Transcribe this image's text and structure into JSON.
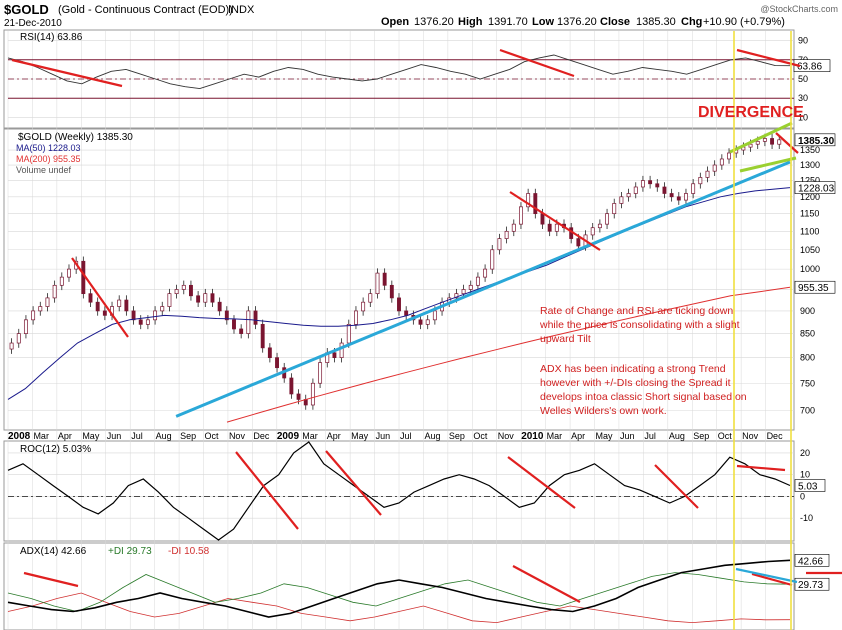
{
  "header": {
    "symbol": "$GOLD",
    "name": "(Gold - Continuous Contract (EOD))",
    "exchange": "INDX",
    "date": "21-Dec-2010",
    "watermark": "@StockCharts.com",
    "open_label": "Open",
    "open": "1376.20",
    "high_label": "High",
    "high": "1391.70",
    "low_label": "Low",
    "low": "1376.20",
    "close_label": "Close",
    "close": "1385.30",
    "chg_label": "Chg",
    "chg": "+10.90 (+0.79%)"
  },
  "colors": {
    "candle": "#7a1530",
    "grid": "#d8d8d8",
    "ma50": "#1a1a8c",
    "ma200": "#e03030",
    "trendline": "#2aa8d8",
    "annotation": "#e02020",
    "channel": "#9ad030",
    "marker": "#f0e040",
    "plusdi": "#2a7a2a",
    "minusdi": "#d03030",
    "price_label_bg": "#ffffff"
  },
  "annotations": {
    "divergence": "DIVERGENCE",
    "note1": [
      "Rate of Change and RSI are ticking down",
      "while the price is consolidating with a slight",
      "upward Tilt"
    ],
    "note2": [
      "ADX has been indicating a strong Trend",
      "however with +/-DIs closing the Spread it",
      "develops intoa classic Short signal based on",
      "Welles Wilders's own work."
    ]
  },
  "chart_data": [
    {
      "type": "line",
      "title": "RSI(14) 63.86",
      "series": [
        {
          "name": "RSI(14)",
          "values": [
            72,
            68,
            62,
            55,
            48,
            45,
            52,
            58,
            60,
            55,
            50,
            45,
            42,
            40,
            45,
            50,
            55,
            52,
            58,
            62,
            60,
            55,
            52,
            50,
            48,
            50,
            55,
            60,
            65,
            62,
            58,
            55,
            50,
            55,
            60,
            68,
            72,
            75,
            70,
            65,
            60,
            55,
            58,
            62,
            60,
            58,
            55,
            60,
            65,
            70,
            72,
            68,
            64,
            63.86
          ]
        }
      ],
      "ylim": [
        0,
        100
      ],
      "ticks": [
        "90",
        "70",
        "50",
        "30",
        "10"
      ],
      "last_label": "63.86"
    },
    {
      "type": "line",
      "title": "$GOLD (Weekly) 1385.30",
      "legend": [
        {
          "name": "MA(50) 1228.03",
          "color": "#1a1a8c"
        },
        {
          "name": "MA(200) 955.35",
          "color": "#e03030"
        },
        {
          "name": "Volume undef",
          "color": "#888888"
        }
      ],
      "x_labels": [
        "2008",
        "Mar",
        "Apr",
        "May",
        "Jun",
        "Jul",
        "Aug",
        "Sep",
        "Oct",
        "Nov",
        "Dec",
        "2009",
        "Mar",
        "Apr",
        "May",
        "Jun",
        "Jul",
        "Aug",
        "Sep",
        "Oct",
        "Nov",
        "2010",
        "Mar",
        "Apr",
        "May",
        "Jun",
        "Jul",
        "Aug",
        "Sep",
        "Oct",
        "Nov",
        "Dec"
      ],
      "y_ticks": [
        700,
        750,
        800,
        850,
        900,
        950,
        1000,
        1050,
        1100,
        1150,
        1200,
        1250,
        1300,
        1350
      ],
      "ylog": true,
      "ylim": [
        670,
        1420
      ],
      "close_series": [
        830,
        850,
        880,
        900,
        910,
        930,
        960,
        980,
        1000,
        1020,
        940,
        920,
        900,
        890,
        910,
        925,
        900,
        880,
        870,
        880,
        900,
        910,
        940,
        950,
        960,
        935,
        920,
        940,
        920,
        900,
        880,
        860,
        850,
        900,
        870,
        820,
        800,
        780,
        760,
        730,
        720,
        710,
        750,
        790,
        810,
        800,
        830,
        870,
        900,
        920,
        940,
        990,
        960,
        930,
        900,
        890,
        880,
        870,
        880,
        900,
        920,
        930,
        940,
        950,
        960,
        980,
        1000,
        1050,
        1080,
        1100,
        1120,
        1170,
        1210,
        1150,
        1120,
        1100,
        1120,
        1110,
        1080,
        1060,
        1090,
        1110,
        1120,
        1150,
        1180,
        1200,
        1210,
        1230,
        1250,
        1240,
        1230,
        1210,
        1200,
        1190,
        1210,
        1240,
        1260,
        1280,
        1300,
        1320,
        1340,
        1350,
        1360,
        1370,
        1380,
        1390,
        1370,
        1385.3
      ],
      "ma50": [
        720,
        740,
        770,
        800,
        830,
        850,
        870,
        880,
        885,
        890,
        888,
        885,
        883,
        882,
        880,
        876,
        872,
        868,
        866,
        866,
        868,
        872,
        880,
        890,
        905,
        920,
        935,
        950,
        965,
        980,
        995,
        1010,
        1030,
        1050,
        1070,
        1090,
        1110,
        1130,
        1150,
        1170,
        1185,
        1200,
        1210,
        1218,
        1223,
        1228.03
      ],
      "ma200": [
        680,
        695,
        710,
        725,
        740,
        755,
        770,
        785,
        800,
        815,
        830,
        845,
        860,
        875,
        890,
        905,
        920,
        935,
        945,
        955.35
      ],
      "trendline": [
        {
          "x": 0.215,
          "y": 690
        },
        {
          "x": 1.0,
          "y": 1310
        }
      ],
      "price_labels": [
        "1385.30",
        "1228.03",
        "955.35"
      ]
    },
    {
      "type": "line",
      "title": "ROC(12) 5.03%",
      "series": [
        {
          "name": "ROC(12)",
          "values": [
            12,
            15,
            10,
            5,
            0,
            -5,
            -8,
            -3,
            5,
            8,
            2,
            -5,
            -10,
            -15,
            -20,
            -15,
            -5,
            5,
            10,
            20,
            25,
            15,
            10,
            5,
            0,
            -5,
            -3,
            2,
            5,
            8,
            10,
            8,
            5,
            0,
            -5,
            -3,
            5,
            10,
            12,
            15,
            10,
            5,
            3,
            0,
            -3,
            0,
            5,
            10,
            18,
            15,
            10,
            8,
            5.03
          ]
        }
      ],
      "ylim": [
        -20,
        25
      ],
      "ticks": [
        "20",
        "10",
        "0",
        "-10"
      ],
      "last_label": "5.03"
    },
    {
      "type": "line",
      "title": "ADX(14) 42.66",
      "legend": [
        {
          "name": "+DI 29.73",
          "color": "#2a7a2a"
        },
        {
          "name": "-DI 10.58",
          "color": "#d03030"
        }
      ],
      "series": [
        {
          "name": "ADX(14)",
          "values": [
            20,
            18,
            16,
            15,
            17,
            20,
            22,
            25,
            22,
            20,
            18,
            15,
            12,
            14,
            18,
            22,
            26,
            30,
            32,
            30,
            28,
            25,
            22,
            20,
            18,
            16,
            15,
            18,
            22,
            28,
            32,
            36,
            38,
            40,
            41,
            42,
            42.66
          ]
        },
        {
          "name": "+DI",
          "values": [
            25,
            22,
            18,
            15,
            20,
            28,
            35,
            30,
            25,
            20,
            22,
            25,
            30,
            28,
            24,
            20,
            18,
            22,
            26,
            30,
            32,
            28,
            24,
            20,
            18,
            22,
            26,
            30,
            34,
            36,
            35,
            33,
            31,
            30,
            29.73
          ]
        },
        {
          "name": "-DI",
          "values": [
            15,
            18,
            22,
            25,
            20,
            15,
            12,
            14,
            18,
            22,
            20,
            18,
            14,
            12,
            10,
            12,
            15,
            18,
            14,
            10,
            9,
            12,
            15,
            18,
            16,
            14,
            12,
            10,
            9,
            10,
            11,
            10.5,
            10.58
          ]
        }
      ],
      "last_labels": [
        "42.66",
        "29.73"
      ]
    }
  ]
}
